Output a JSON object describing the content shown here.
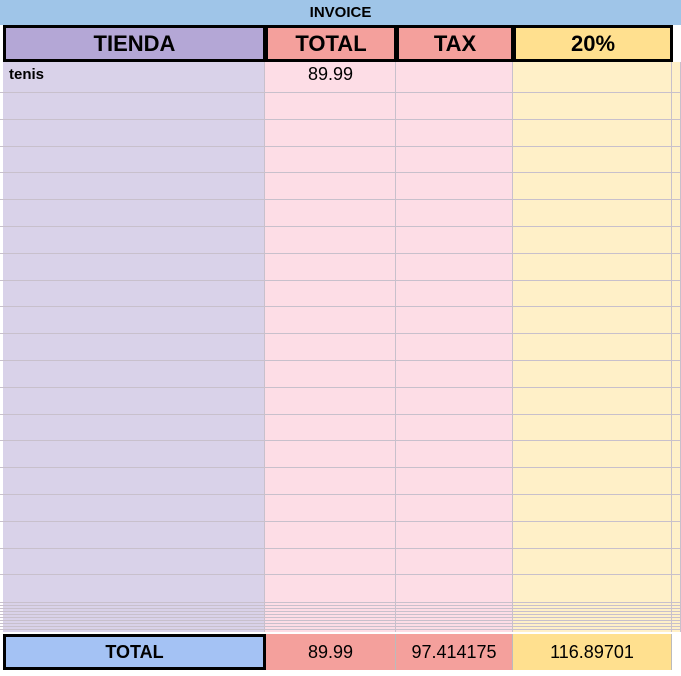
{
  "title": "INVOICE",
  "header": [
    "TIENDA",
    "TOTAL",
    "TAX",
    "20%"
  ],
  "rows": [
    [
      "tenis",
      89.99
    ]
  ],
  "footer": [
    "TOTAL",
    89.99,
    97.414175,
    116.89701
  ]
}
